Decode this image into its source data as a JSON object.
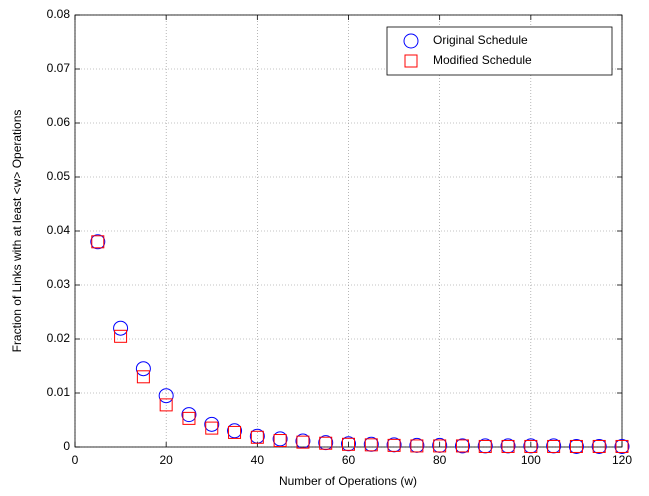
{
  "chart_data": {
    "type": "scatter",
    "xlabel": "Number of Operations (w)",
    "ylabel": "Fraction of Links with at least <w> Operations",
    "x": [
      5,
      10,
      15,
      20,
      25,
      30,
      35,
      40,
      45,
      50,
      55,
      60,
      65,
      70,
      75,
      80,
      85,
      90,
      95,
      100,
      105,
      110,
      115,
      120
    ],
    "series": [
      {
        "name": "Original Schedule",
        "color": "#0000ff",
        "marker": "circle",
        "values": [
          0.038,
          0.022,
          0.0145,
          0.0095,
          0.006,
          0.0042,
          0.003,
          0.002,
          0.0015,
          0.0011,
          0.0008,
          0.0006,
          0.0005,
          0.0004,
          0.0003,
          0.0003,
          0.0002,
          0.0002,
          0.0002,
          0.0002,
          0.0002,
          0.0001,
          0.0001,
          0.0001
        ]
      },
      {
        "name": "Modified Schedule",
        "color": "#ff0000",
        "marker": "square",
        "values": [
          0.038,
          0.0205,
          0.013,
          0.0078,
          0.0053,
          0.0035,
          0.0027,
          0.0018,
          0.0012,
          0.0009,
          0.0007,
          0.0005,
          0.0004,
          0.0003,
          0.0002,
          0.0002,
          0.0002,
          0.0001,
          0.0001,
          0.0001,
          0.0001,
          0.0001,
          0.0001,
          0.0001
        ]
      }
    ],
    "xlim": [
      0,
      120
    ],
    "xticks": [
      0,
      20,
      40,
      60,
      80,
      100,
      120
    ],
    "ylim": [
      0,
      0.08
    ],
    "yticks": [
      0,
      0.01,
      0.02,
      0.03,
      0.04,
      0.05,
      0.06,
      0.07,
      0.08
    ],
    "grid": true,
    "legend": "northeast"
  }
}
